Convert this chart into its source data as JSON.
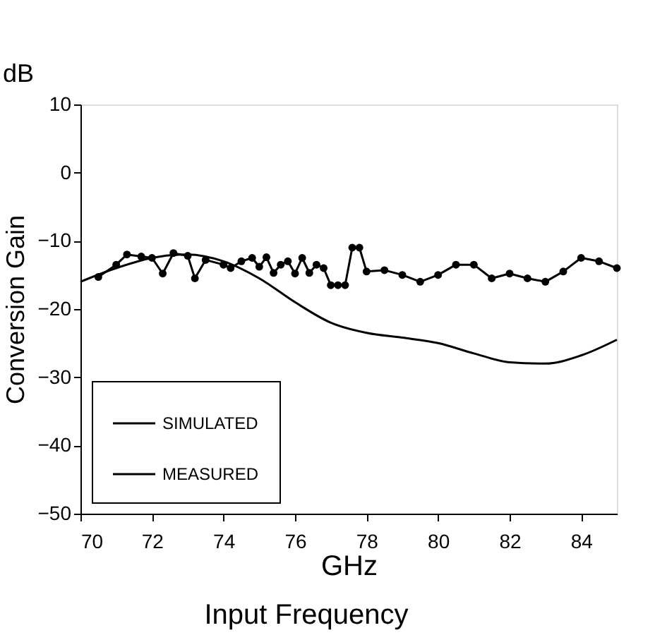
{
  "chart_data": {
    "type": "line",
    "xlabel": "GHz",
    "ylabel": "Conversion Gain",
    "annotations": [
      "dB",
      "Input Frequency"
    ],
    "xlim": [
      70,
      85
    ],
    "ylim": [
      -50,
      10
    ],
    "xticks": [
      70,
      72,
      74,
      76,
      78,
      80,
      82,
      84
    ],
    "yticks": [
      -50,
      -40,
      -30,
      -20,
      -10,
      0,
      10
    ],
    "grid": false,
    "legend": "bottom left",
    "series": [
      {
        "name": "SIMULATED",
        "color": "#000000",
        "marker": "none",
        "x": [
          70,
          71,
          72,
          73,
          74,
          75,
          76,
          77,
          78,
          79,
          80,
          81,
          82,
          83,
          84,
          85
        ],
        "values": [
          -16,
          -14,
          -12.5,
          -12,
          -13,
          -15.5,
          -19,
          -22,
          -23.5,
          -24.2,
          -25,
          -26.5,
          -27.8,
          -28,
          -26.8,
          -24.5
        ]
      },
      {
        "name": "MEASURED",
        "color": "#000000",
        "marker": "circle",
        "x": [
          70.5,
          71,
          71.3,
          71.7,
          72,
          72.3,
          72.6,
          73,
          73.2,
          73.5,
          74,
          74.2,
          74.5,
          74.8,
          75,
          75.2,
          75.4,
          75.6,
          75.8,
          76,
          76.2,
          76.4,
          76.6,
          76.8,
          77,
          77.2,
          77.4,
          77.6,
          77.8,
          78,
          78.5,
          79,
          79.5,
          80,
          80.5,
          81,
          81.5,
          82,
          82.5,
          83,
          83.5,
          84,
          84.5,
          85
        ],
        "values": [
          -15.3,
          -13.5,
          -12,
          -12.3,
          -12.5,
          -14.8,
          -11.8,
          -12.2,
          -15.5,
          -12.8,
          -13.5,
          -14,
          -13,
          -12.5,
          -13.8,
          -12.4,
          -14.7,
          -13.5,
          -13,
          -14.8,
          -12.5,
          -14.7,
          -13.5,
          -14,
          -16.5,
          -16.5,
          -16.5,
          -11,
          -11,
          -14.5,
          -14.3,
          -15,
          -16,
          -15,
          -13.5,
          -13.5,
          -15.5,
          -14.8,
          -15.5,
          -16,
          -14.5,
          -12.5,
          -13,
          -14
        ]
      }
    ]
  }
}
